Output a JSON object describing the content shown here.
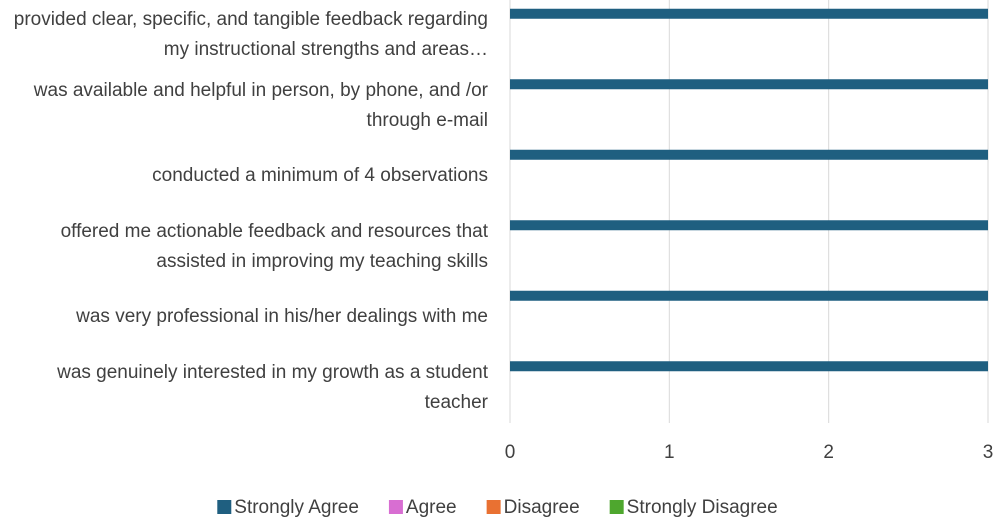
{
  "chart_data": {
    "type": "bar",
    "orientation": "horizontal",
    "categories": [
      "provided clear, specific, and tangible feedback regarding my instructional strengths and areas…",
      "was available and helpful in person, by phone, and /or through e-mail",
      "conducted a minimum of 4 observations",
      "offered me actionable feedback and resources that assisted in improving my teaching skills",
      "was very professional in his/her dealings with me",
      "was genuinely interested in my growth as a student teacher"
    ],
    "series": [
      {
        "name": "Strongly Agree",
        "color": "#1f5f80",
        "values": [
          3,
          3,
          3,
          3,
          3,
          3
        ]
      },
      {
        "name": "Agree",
        "color": "#d86ed2",
        "values": [
          0,
          0,
          0,
          0,
          0,
          0
        ]
      },
      {
        "name": "Disagree",
        "color": "#e97132",
        "values": [
          0,
          0,
          0,
          0,
          0,
          0
        ]
      },
      {
        "name": "Strongly Disagree",
        "color": "#4ea72e",
        "values": [
          0,
          0,
          0,
          0,
          0,
          0
        ]
      }
    ],
    "xlim": [
      0,
      3
    ],
    "xticks": [
      0,
      1,
      2,
      3
    ],
    "grid": true,
    "legend": "bottom"
  }
}
